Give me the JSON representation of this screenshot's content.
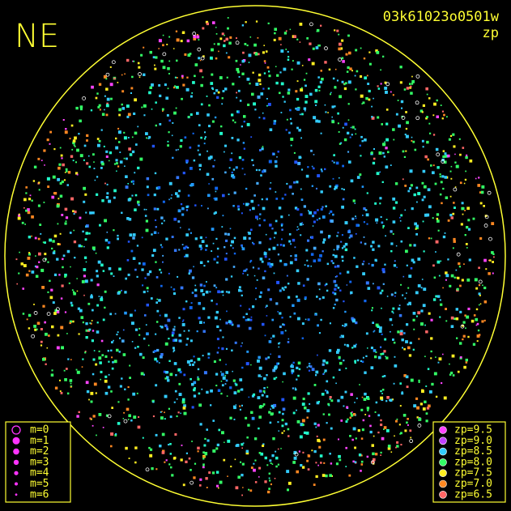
{
  "header": {
    "corner": "NE",
    "title": "03k61023o0501w",
    "subtitle": "zp"
  },
  "magnitude_legend": {
    "color": "#ff33ff",
    "items": [
      {
        "label": "m=0",
        "size": 5,
        "hollow": true
      },
      {
        "label": "m=1",
        "size": 4.5
      },
      {
        "label": "m=2",
        "size": 3.8
      },
      {
        "label": "m=3",
        "size": 3.2
      },
      {
        "label": "m=4",
        "size": 2.6
      },
      {
        "label": "m=5",
        "size": 2
      },
      {
        "label": "m=6",
        "size": 1.4
      }
    ]
  },
  "zp_legend": {
    "items": [
      {
        "label": "zp=9.5",
        "color": "#ff44ff"
      },
      {
        "label": "zp=9.0",
        "color": "#c040ff"
      },
      {
        "label": "zp=8.5",
        "color": "#33ccff"
      },
      {
        "label": "zp=8.0",
        "color": "#33ff66"
      },
      {
        "label": "zp=7.5",
        "color": "#ffee22"
      },
      {
        "label": "zp=7.0",
        "color": "#ff8822"
      },
      {
        "label": "zp=6.5",
        "color": "#ff6666"
      }
    ]
  }
}
